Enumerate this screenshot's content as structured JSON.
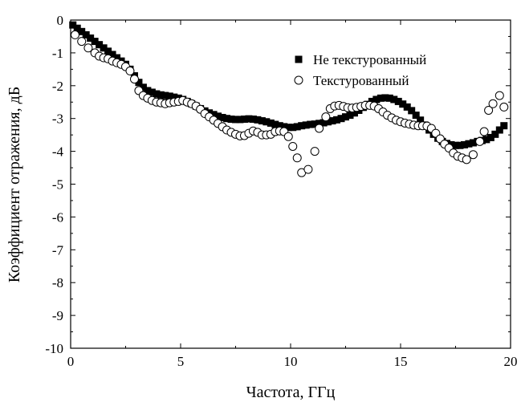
{
  "chart_data": {
    "type": "scatter",
    "title": "",
    "xlabel": "Частота, ГГц",
    "ylabel": "Коэффициент отражения, дБ",
    "xlim": [
      0,
      20
    ],
    "ylim": [
      -10,
      0
    ],
    "x_ticks": [
      "0",
      "5",
      "10",
      "15",
      "20"
    ],
    "y_ticks": [
      "0",
      "-1",
      "-2",
      "-3",
      "-4",
      "-5",
      "-6",
      "-7",
      "-8",
      "-9",
      "-10"
    ],
    "grid": false,
    "legend_position": "top-right",
    "series": [
      {
        "name": "Не текстурованный",
        "marker": "filled-square",
        "color": "#000000",
        "points": [
          [
            0.1,
            -0.15
          ],
          [
            0.3,
            -0.25
          ],
          [
            0.5,
            -0.35
          ],
          [
            0.7,
            -0.45
          ],
          [
            0.9,
            -0.55
          ],
          [
            1.1,
            -0.65
          ],
          [
            1.3,
            -0.75
          ],
          [
            1.5,
            -0.85
          ],
          [
            1.7,
            -0.95
          ],
          [
            1.9,
            -1.05
          ],
          [
            2.1,
            -1.15
          ],
          [
            2.3,
            -1.25
          ],
          [
            2.5,
            -1.35
          ],
          [
            2.7,
            -1.5
          ],
          [
            2.9,
            -1.7
          ],
          [
            3.1,
            -1.9
          ],
          [
            3.3,
            -2.05
          ],
          [
            3.5,
            -2.15
          ],
          [
            3.7,
            -2.2
          ],
          [
            3.9,
            -2.25
          ],
          [
            4.1,
            -2.28
          ],
          [
            4.3,
            -2.3
          ],
          [
            4.5,
            -2.32
          ],
          [
            4.7,
            -2.35
          ],
          [
            4.9,
            -2.38
          ],
          [
            5.1,
            -2.42
          ],
          [
            5.3,
            -2.48
          ],
          [
            5.5,
            -2.55
          ],
          [
            5.7,
            -2.62
          ],
          [
            5.9,
            -2.7
          ],
          [
            6.1,
            -2.77
          ],
          [
            6.3,
            -2.83
          ],
          [
            6.5,
            -2.88
          ],
          [
            6.7,
            -2.93
          ],
          [
            6.9,
            -2.97
          ],
          [
            7.1,
            -3.0
          ],
          [
            7.3,
            -3.02
          ],
          [
            7.5,
            -3.03
          ],
          [
            7.7,
            -3.03
          ],
          [
            7.9,
            -3.02
          ],
          [
            8.1,
            -3.01
          ],
          [
            8.3,
            -3.02
          ],
          [
            8.5,
            -3.04
          ],
          [
            8.7,
            -3.07
          ],
          [
            8.9,
            -3.1
          ],
          [
            9.1,
            -3.14
          ],
          [
            9.3,
            -3.18
          ],
          [
            9.5,
            -3.22
          ],
          [
            9.7,
            -3.25
          ],
          [
            9.9,
            -3.27
          ],
          [
            10.1,
            -3.27
          ],
          [
            10.3,
            -3.25
          ],
          [
            10.5,
            -3.22
          ],
          [
            10.7,
            -3.2
          ],
          [
            10.9,
            -3.18
          ],
          [
            11.1,
            -3.17
          ],
          [
            11.3,
            -3.15
          ],
          [
            11.5,
            -3.13
          ],
          [
            11.7,
            -3.1
          ],
          [
            11.9,
            -3.07
          ],
          [
            12.1,
            -3.04
          ],
          [
            12.3,
            -3.0
          ],
          [
            12.5,
            -2.95
          ],
          [
            12.7,
            -2.9
          ],
          [
            12.9,
            -2.83
          ],
          [
            13.1,
            -2.75
          ],
          [
            13.3,
            -2.66
          ],
          [
            13.5,
            -2.57
          ],
          [
            13.7,
            -2.48
          ],
          [
            13.9,
            -2.42
          ],
          [
            14.1,
            -2.38
          ],
          [
            14.3,
            -2.37
          ],
          [
            14.5,
            -2.38
          ],
          [
            14.7,
            -2.42
          ],
          [
            14.9,
            -2.48
          ],
          [
            15.1,
            -2.56
          ],
          [
            15.3,
            -2.65
          ],
          [
            15.5,
            -2.76
          ],
          [
            15.7,
            -2.9
          ],
          [
            15.9,
            -3.05
          ],
          [
            16.1,
            -3.2
          ],
          [
            16.3,
            -3.35
          ],
          [
            16.5,
            -3.48
          ],
          [
            16.7,
            -3.6
          ],
          [
            16.9,
            -3.7
          ],
          [
            17.1,
            -3.76
          ],
          [
            17.3,
            -3.8
          ],
          [
            17.5,
            -3.82
          ],
          [
            17.7,
            -3.82
          ],
          [
            17.9,
            -3.8
          ],
          [
            18.1,
            -3.77
          ],
          [
            18.3,
            -3.74
          ],
          [
            18.5,
            -3.7
          ],
          [
            18.7,
            -3.67
          ],
          [
            18.9,
            -3.64
          ],
          [
            19.1,
            -3.58
          ],
          [
            19.3,
            -3.48
          ],
          [
            19.5,
            -3.35
          ],
          [
            19.7,
            -3.22
          ]
        ]
      },
      {
        "name": "Текстурованный",
        "marker": "open-circle",
        "color": "#000000",
        "points": [
          [
            0.2,
            -0.45
          ],
          [
            0.5,
            -0.65
          ],
          [
            0.8,
            -0.85
          ],
          [
            1.1,
            -1.0
          ],
          [
            1.3,
            -1.1
          ],
          [
            1.5,
            -1.15
          ],
          [
            1.7,
            -1.18
          ],
          [
            1.9,
            -1.25
          ],
          [
            2.1,
            -1.3
          ],
          [
            2.3,
            -1.35
          ],
          [
            2.5,
            -1.42
          ],
          [
            2.7,
            -1.55
          ],
          [
            2.9,
            -1.8
          ],
          [
            3.1,
            -2.15
          ],
          [
            3.3,
            -2.3
          ],
          [
            3.5,
            -2.38
          ],
          [
            3.7,
            -2.45
          ],
          [
            3.9,
            -2.5
          ],
          [
            4.1,
            -2.52
          ],
          [
            4.3,
            -2.55
          ],
          [
            4.5,
            -2.52
          ],
          [
            4.7,
            -2.5
          ],
          [
            4.9,
            -2.48
          ],
          [
            5.1,
            -2.45
          ],
          [
            5.3,
            -2.5
          ],
          [
            5.5,
            -2.55
          ],
          [
            5.7,
            -2.62
          ],
          [
            5.9,
            -2.72
          ],
          [
            6.1,
            -2.85
          ],
          [
            6.3,
            -2.95
          ],
          [
            6.5,
            -3.05
          ],
          [
            6.7,
            -3.15
          ],
          [
            6.9,
            -3.25
          ],
          [
            7.1,
            -3.35
          ],
          [
            7.3,
            -3.42
          ],
          [
            7.5,
            -3.48
          ],
          [
            7.7,
            -3.53
          ],
          [
            7.9,
            -3.52
          ],
          [
            8.1,
            -3.45
          ],
          [
            8.3,
            -3.38
          ],
          [
            8.5,
            -3.42
          ],
          [
            8.7,
            -3.5
          ],
          [
            8.9,
            -3.5
          ],
          [
            9.1,
            -3.48
          ],
          [
            9.3,
            -3.4
          ],
          [
            9.5,
            -3.38
          ],
          [
            9.7,
            -3.4
          ],
          [
            9.9,
            -3.55
          ],
          [
            10.1,
            -3.85
          ],
          [
            10.3,
            -4.2
          ],
          [
            10.5,
            -4.65
          ],
          [
            10.8,
            -4.55
          ],
          [
            11.1,
            -4.0
          ],
          [
            11.3,
            -3.3
          ],
          [
            11.6,
            -2.95
          ],
          [
            11.8,
            -2.7
          ],
          [
            12.0,
            -2.62
          ],
          [
            12.2,
            -2.6
          ],
          [
            12.4,
            -2.63
          ],
          [
            12.6,
            -2.67
          ],
          [
            12.8,
            -2.68
          ],
          [
            13.0,
            -2.66
          ],
          [
            13.2,
            -2.63
          ],
          [
            13.4,
            -2.6
          ],
          [
            13.6,
            -2.6
          ],
          [
            13.8,
            -2.62
          ],
          [
            14.0,
            -2.7
          ],
          [
            14.2,
            -2.8
          ],
          [
            14.4,
            -2.9
          ],
          [
            14.6,
            -2.98
          ],
          [
            14.8,
            -3.05
          ],
          [
            15.0,
            -3.1
          ],
          [
            15.2,
            -3.14
          ],
          [
            15.4,
            -3.17
          ],
          [
            15.6,
            -3.2
          ],
          [
            15.8,
            -3.22
          ],
          [
            16.0,
            -3.22
          ],
          [
            16.2,
            -3.23
          ],
          [
            16.4,
            -3.3
          ],
          [
            16.6,
            -3.45
          ],
          [
            16.8,
            -3.62
          ],
          [
            17.0,
            -3.78
          ],
          [
            17.2,
            -3.9
          ],
          [
            17.4,
            -4.05
          ],
          [
            17.6,
            -4.15
          ],
          [
            17.8,
            -4.2
          ],
          [
            18.0,
            -4.25
          ],
          [
            18.3,
            -4.1
          ],
          [
            18.6,
            -3.7
          ],
          [
            18.8,
            -3.4
          ],
          [
            19.0,
            -2.75
          ],
          [
            19.2,
            -2.55
          ],
          [
            19.5,
            -2.3
          ],
          [
            19.7,
            -2.65
          ]
        ]
      }
    ]
  }
}
